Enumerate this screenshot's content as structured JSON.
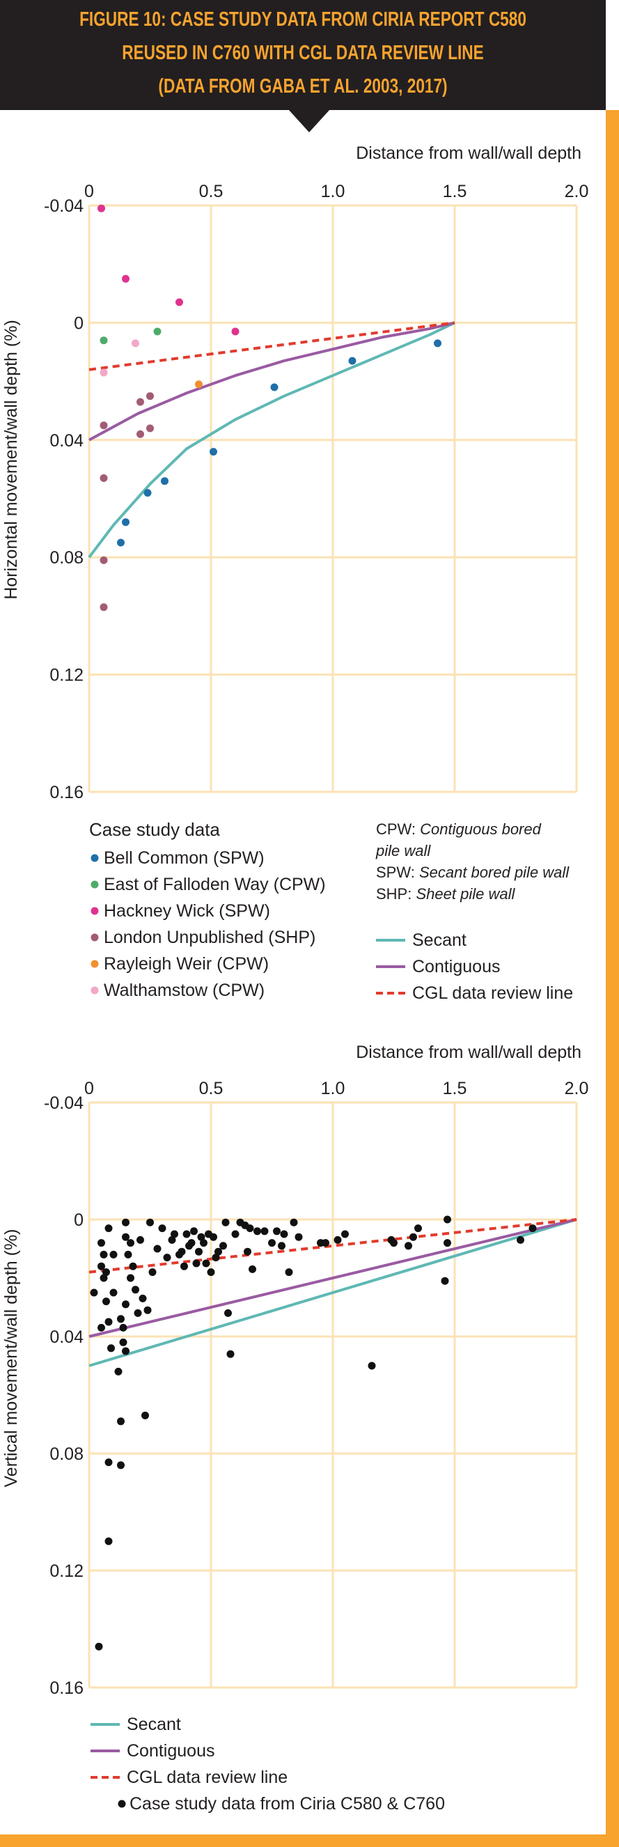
{
  "header": {
    "title_lines": [
      "FIGURE 10: CASE STUDY DATA FROM CIRIA REPORT C580",
      "REUSED IN C760 WITH CGL DATA REVIEW LINE",
      "(DATA FROM GABA ET AL. 2003, 2017)"
    ]
  },
  "colors": {
    "accent": "#f7a32e",
    "header_bg": "#231f20",
    "grid": "#fbe2b4",
    "secant": "#5fb8b4",
    "contiguous": "#9a5ba2",
    "cgl": "#e23b2e"
  },
  "chart_data": [
    {
      "type": "scatter",
      "title": "Horizontal movement",
      "xlabel": "Distance from wall/wall depth",
      "ylabel": "Horizontal movement/wall depth (%)",
      "xlim": [
        0,
        2.0
      ],
      "ylim": [
        -0.04,
        0.16
      ],
      "y_inverted": true,
      "x_ticks": [
        0,
        0.5,
        1.0,
        1.5,
        2.0
      ],
      "x_tick_labels": [
        "0",
        "0.5",
        "1.0",
        "1.5",
        "2.0"
      ],
      "y_ticks": [
        -0.04,
        0,
        0.04,
        0.08,
        0.12,
        0.16
      ],
      "y_tick_labels": [
        "-0.04",
        "0",
        "0.04",
        "0.08",
        "0.12",
        "0.16"
      ],
      "legend_title": "Case study data",
      "series": [
        {
          "name": "Bell Common (SPW)",
          "color": "#1f6fa8",
          "x": [
            0.13,
            0.15,
            0.24,
            0.31,
            0.51,
            0.76,
            1.08,
            1.43
          ],
          "y": [
            0.075,
            0.068,
            0.058,
            0.054,
            0.044,
            0.022,
            0.013,
            0.007
          ]
        },
        {
          "name": "East of Falloden Way (CPW)",
          "color": "#4fab6a",
          "x": [
            0.06,
            0.28
          ],
          "y": [
            0.006,
            0.003
          ]
        },
        {
          "name": "Hackney Wick (SPW)",
          "color": "#e0338f",
          "x": [
            0.05,
            0.15,
            0.37,
            0.6
          ],
          "y": [
            -0.039,
            -0.015,
            -0.007,
            0.003
          ]
        },
        {
          "name": "London Unpublished (SHP)",
          "color": "#a25c74",
          "x": [
            0.06,
            0.06,
            0.06,
            0.06,
            0.21,
            0.25,
            0.21,
            0.25
          ],
          "y": [
            0.035,
            0.053,
            0.081,
            0.097,
            0.027,
            0.025,
            0.038,
            0.036
          ]
        },
        {
          "name": "Rayleigh Weir (CPW)",
          "color": "#f0902e",
          "x": [
            0.45
          ],
          "y": [
            0.021
          ]
        },
        {
          "name": "Walthamstow (CPW)",
          "color": "#f2a8c8",
          "x": [
            0.06,
            0.19
          ],
          "y": [
            0.017,
            0.007
          ]
        }
      ],
      "lines": [
        {
          "name": "Secant",
          "color": "#5fb8b4",
          "style": "solid",
          "x": [
            0,
            0.1,
            0.25,
            0.4,
            0.6,
            0.8,
            1.0,
            1.2,
            1.4,
            1.5
          ],
          "y": [
            0.08,
            0.069,
            0.055,
            0.043,
            0.033,
            0.025,
            0.018,
            0.011,
            0.004,
            0.0
          ]
        },
        {
          "name": "Contiguous",
          "color": "#9a5ba2",
          "style": "solid",
          "x": [
            0,
            0.2,
            0.4,
            0.6,
            0.8,
            1.0,
            1.2,
            1.4,
            1.5
          ],
          "y": [
            0.04,
            0.031,
            0.024,
            0.018,
            0.013,
            0.009,
            0.005,
            0.002,
            0.0
          ]
        },
        {
          "name": "CGL data review line",
          "color": "#e23b2e",
          "style": "dashed",
          "x": [
            0,
            1.5
          ],
          "y": [
            0.016,
            0.0
          ]
        }
      ],
      "notes": [
        {
          "abbr": "CPW:",
          "text": "Contiguous bored"
        },
        {
          "abbr": "",
          "text": "pile wall"
        },
        {
          "abbr": "SPW:",
          "text": "Secant bored pile wall"
        },
        {
          "abbr": "SHP:",
          "text": "Sheet pile wall"
        }
      ],
      "line_legend": [
        "Secant",
        "Contiguous",
        "CGL data review line"
      ]
    },
    {
      "type": "scatter",
      "title": "Vertical movement",
      "xlabel": "Distance from wall/wall depth",
      "ylabel": "Vertical movement/wall depth (%)",
      "xlim": [
        0,
        2.0
      ],
      "ylim": [
        -0.04,
        0.16
      ],
      "y_inverted": true,
      "x_ticks": [
        0,
        0.5,
        1.0,
        1.5,
        2.0
      ],
      "x_tick_labels": [
        "0",
        "0.5",
        "1.0",
        "1.5",
        "2.0"
      ],
      "y_ticks": [
        -0.04,
        0,
        0.04,
        0.08,
        0.12,
        0.16
      ],
      "y_tick_labels": [
        "-0.04",
        "0",
        "0.04",
        "0.08",
        "0.12",
        "0.16"
      ],
      "series": [
        {
          "name": "Case study data from Ciria C580 & C760",
          "color": "#111111",
          "x": [
            0.02,
            0.04,
            0.05,
            0.05,
            0.05,
            0.06,
            0.06,
            0.07,
            0.07,
            0.08,
            0.08,
            0.08,
            0.08,
            0.09,
            0.1,
            0.1,
            0.12,
            0.13,
            0.13,
            0.13,
            0.14,
            0.14,
            0.15,
            0.15,
            0.15,
            0.15,
            0.16,
            0.17,
            0.17,
            0.18,
            0.19,
            0.2,
            0.21,
            0.22,
            0.23,
            0.24,
            0.25,
            0.26,
            0.28,
            0.3,
            0.32,
            0.34,
            0.35,
            0.37,
            0.38,
            0.39,
            0.4,
            0.41,
            0.42,
            0.43,
            0.44,
            0.45,
            0.46,
            0.47,
            0.48,
            0.49,
            0.5,
            0.51,
            0.52,
            0.53,
            0.55,
            0.56,
            0.57,
            0.58,
            0.6,
            0.62,
            0.64,
            0.65,
            0.66,
            0.67,
            0.69,
            0.72,
            0.75,
            0.77,
            0.79,
            0.8,
            0.82,
            0.84,
            0.86,
            0.95,
            0.97,
            1.02,
            1.05,
            1.16,
            1.24,
            1.25,
            1.31,
            1.33,
            1.35,
            1.46,
            1.47,
            1.47,
            1.77,
            1.82
          ],
          "y": [
            0.025,
            0.146,
            0.037,
            0.016,
            0.008,
            0.012,
            0.02,
            0.018,
            0.028,
            0.003,
            0.035,
            0.083,
            0.11,
            0.044,
            0.025,
            0.012,
            0.052,
            0.034,
            0.069,
            0.084,
            0.037,
            0.042,
            0.001,
            0.006,
            0.029,
            0.045,
            0.012,
            0.008,
            0.02,
            0.016,
            0.024,
            0.032,
            0.007,
            0.027,
            0.067,
            0.031,
            0.001,
            0.018,
            0.01,
            0.003,
            0.013,
            0.007,
            0.005,
            0.012,
            0.011,
            0.016,
            0.005,
            0.009,
            0.008,
            0.004,
            0.015,
            0.011,
            0.006,
            0.008,
            0.015,
            0.005,
            0.018,
            0.006,
            0.013,
            0.011,
            0.009,
            0.001,
            0.032,
            0.046,
            0.005,
            0.001,
            0.002,
            0.011,
            0.003,
            0.017,
            0.004,
            0.004,
            0.008,
            0.004,
            0.009,
            0.005,
            0.018,
            0.001,
            0.006,
            0.008,
            0.008,
            0.007,
            0.005,
            0.05,
            0.007,
            0.008,
            0.009,
            0.006,
            0.003,
            0.021,
            0.008,
            0.0,
            0.007,
            0.003
          ]
        }
      ],
      "lines": [
        {
          "name": "Secant",
          "color": "#5fb8b4",
          "style": "solid",
          "x": [
            0,
            2.0
          ],
          "y": [
            0.05,
            0.0
          ]
        },
        {
          "name": "Contiguous",
          "color": "#9a5ba2",
          "style": "solid",
          "x": [
            0,
            2.0
          ],
          "y": [
            0.04,
            0.0
          ]
        },
        {
          "name": "CGL data review line",
          "color": "#e23b2e",
          "style": "dashed",
          "x": [
            0,
            2.0
          ],
          "y": [
            0.018,
            0.0
          ]
        }
      ],
      "line_legend": [
        "Secant",
        "Contiguous",
        "CGL data review line"
      ],
      "point_legend": "Case study data from Ciria C580 & C760"
    }
  ]
}
